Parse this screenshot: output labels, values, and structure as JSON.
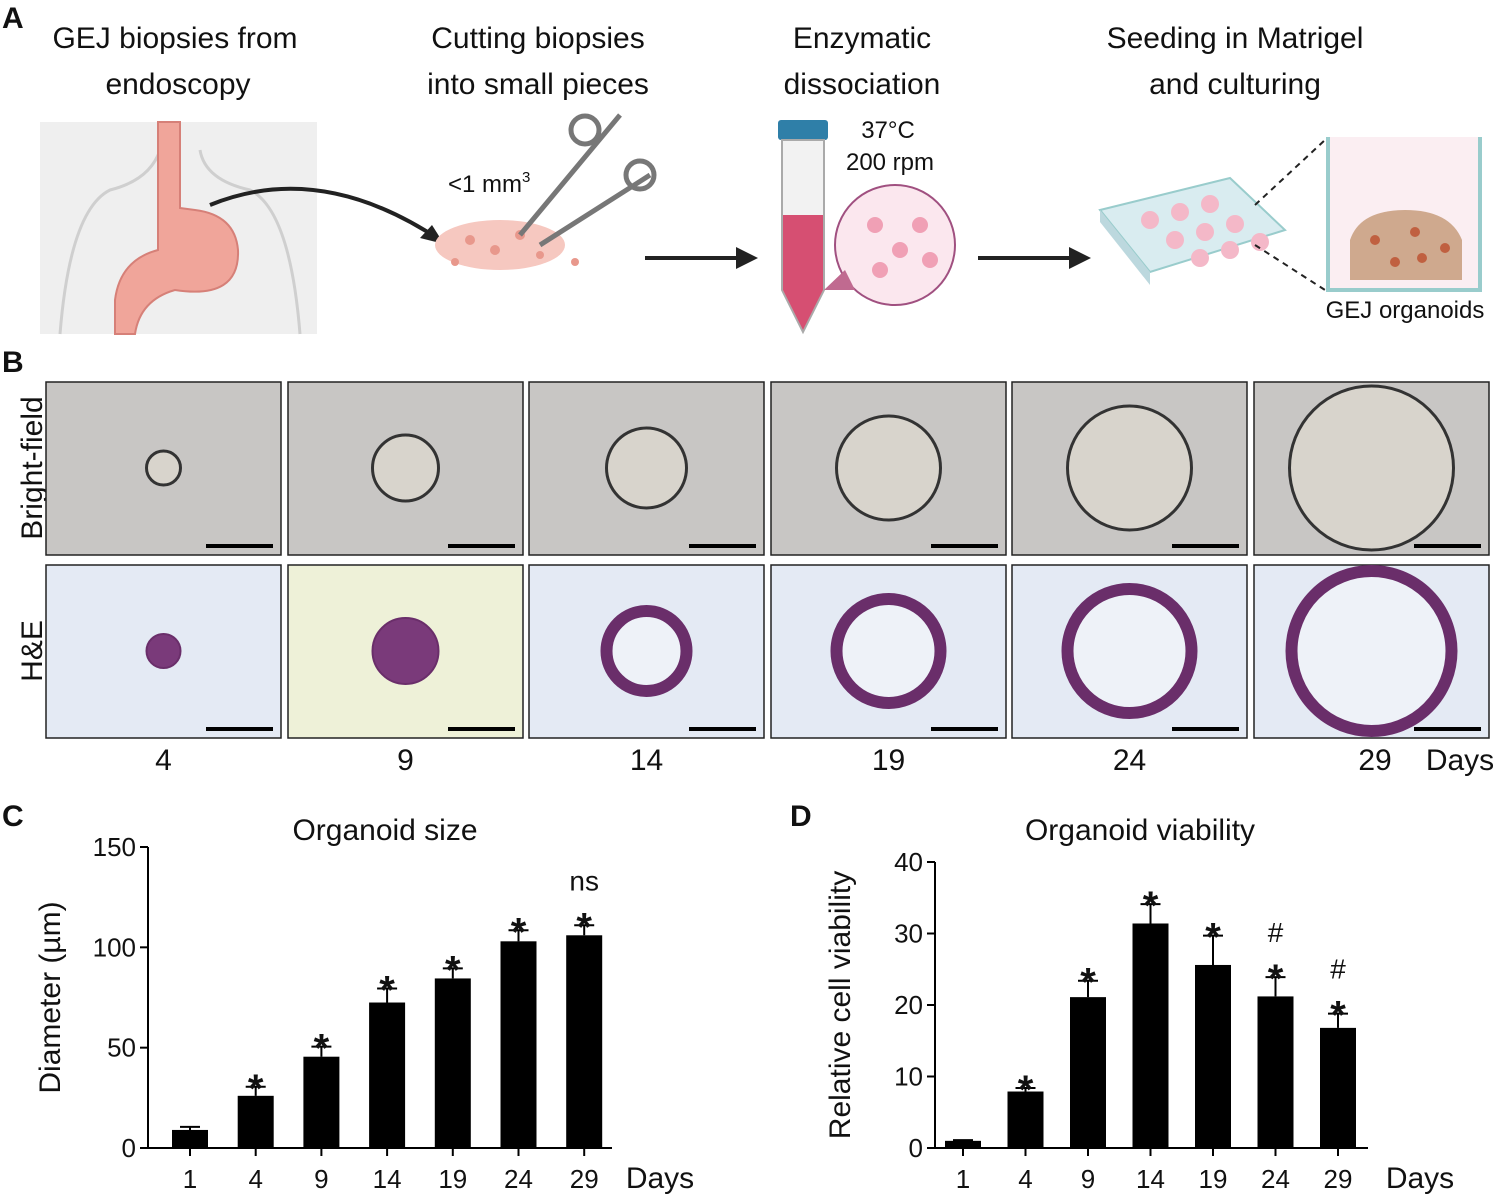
{
  "panel_a": {
    "label": "A",
    "steps": [
      {
        "lines": [
          "GEJ biopsies from",
          "endoscopy"
        ]
      },
      {
        "lines": [
          "Cutting biopsies",
          "into small pieces"
        ],
        "size": {
          "text": "<1 mm",
          "sup": "3"
        }
      },
      {
        "lines": [
          "Enzymatic",
          "dissociation"
        ],
        "conditions": [
          "37°C",
          "200 rpm"
        ]
      },
      {
        "lines": [
          "Seeding in Matrigel",
          "and culturing"
        ],
        "result": "GEJ organoids"
      }
    ]
  },
  "panel_b": {
    "label": "B",
    "rows": [
      "Bright-field",
      "H&E"
    ],
    "days": [
      "4",
      "9",
      "14",
      "19",
      "24",
      "29"
    ],
    "days_label": "Days"
  },
  "chart_data": [
    {
      "type": "bar",
      "panel_label": "C",
      "title": "Organoid size",
      "ylabel": "Diameter (µm)",
      "xlabel": "Days",
      "categories": [
        "1",
        "4",
        "9",
        "14",
        "19",
        "24",
        "29"
      ],
      "values": [
        9,
        26,
        45.5,
        72.5,
        84.5,
        103,
        106
      ],
      "errors": [
        1.5,
        4.5,
        5,
        7,
        5,
        5.5,
        5
      ],
      "markers": [
        [],
        [
          "*"
        ],
        [
          "*"
        ],
        [
          "*"
        ],
        [
          "*"
        ],
        [
          "*"
        ],
        [
          "ns",
          "*"
        ]
      ],
      "color": "#000000",
      "ylim": [
        0,
        150
      ],
      "yticks": [
        0,
        50,
        100,
        150
      ]
    },
    {
      "type": "bar",
      "panel_label": "D",
      "title": "Organoid viability",
      "ylabel": "Relative cell viability",
      "xlabel": "Days",
      "categories": [
        "1",
        "4",
        "9",
        "14",
        "19",
        "24",
        "29"
      ],
      "values": [
        1,
        7.9,
        21.1,
        31.4,
        25.6,
        21.2,
        16.8
      ],
      "errors": [
        0.1,
        0.5,
        2.3,
        2.7,
        4.1,
        2.7,
        2
      ],
      "markers": [
        [],
        [
          "*"
        ],
        [
          "*"
        ],
        [
          "*"
        ],
        [
          "*"
        ],
        [
          "#",
          "*"
        ],
        [
          "#",
          "*"
        ]
      ],
      "color": "#000000",
      "ylim": [
        0,
        40
      ],
      "yticks": [
        0,
        10,
        20,
        30,
        40
      ]
    }
  ]
}
